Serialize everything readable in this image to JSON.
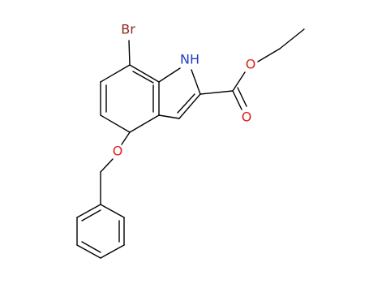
{
  "atoms": [
    {
      "label": "Br"
    },
    {
      "label": "NH"
    },
    {
      "label": "O"
    },
    {
      "label": "O"
    },
    {
      "label": "O"
    }
  ]
}
